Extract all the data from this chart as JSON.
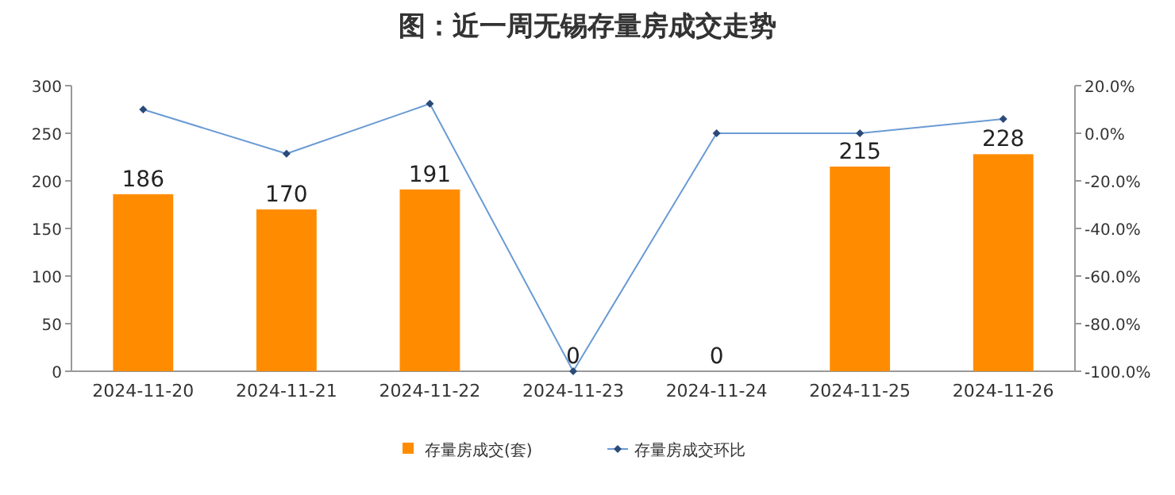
{
  "chart_data": {
    "type": "bar",
    "title": "图：近一周无锡存量房成交走势",
    "categories": [
      "2024-11-20",
      "2024-11-21",
      "2024-11-22",
      "2024-11-23",
      "2024-11-24",
      "2024-11-25",
      "2024-11-26"
    ],
    "series": [
      {
        "name": "存量房成交(套)",
        "color": "#ff8c00",
        "values": [
          186,
          170,
          191,
          0,
          0,
          215,
          228
        ],
        "value_labels": [
          "186",
          "170",
          "191",
          "0",
          "0",
          "215",
          "228"
        ]
      },
      {
        "name": "存量房成交环比",
        "type": "line",
        "axis": "y2",
        "color": "#6a9bd4",
        "marker": "diamond",
        "values": [
          10,
          -8.6,
          12.4,
          -100,
          0,
          0,
          6
        ]
      }
    ],
    "ylim": [
      0,
      300
    ],
    "yticks": [
      0,
      50,
      100,
      150,
      200,
      250,
      300
    ],
    "y2lim": [
      -100,
      20
    ],
    "y2ticks": [
      {
        "value": 20,
        "label": "20.0%"
      },
      {
        "value": 0,
        "label": "0.0%"
      },
      {
        "value": -20,
        "label": "-20.0%"
      },
      {
        "value": -40,
        "label": "-40.0%"
      },
      {
        "value": -60,
        "label": "-60.0%"
      },
      {
        "value": -80,
        "label": "-80.0%"
      },
      {
        "value": -100,
        "label": "-100.0%"
      }
    ],
    "grid": false,
    "legend": "bottom"
  }
}
